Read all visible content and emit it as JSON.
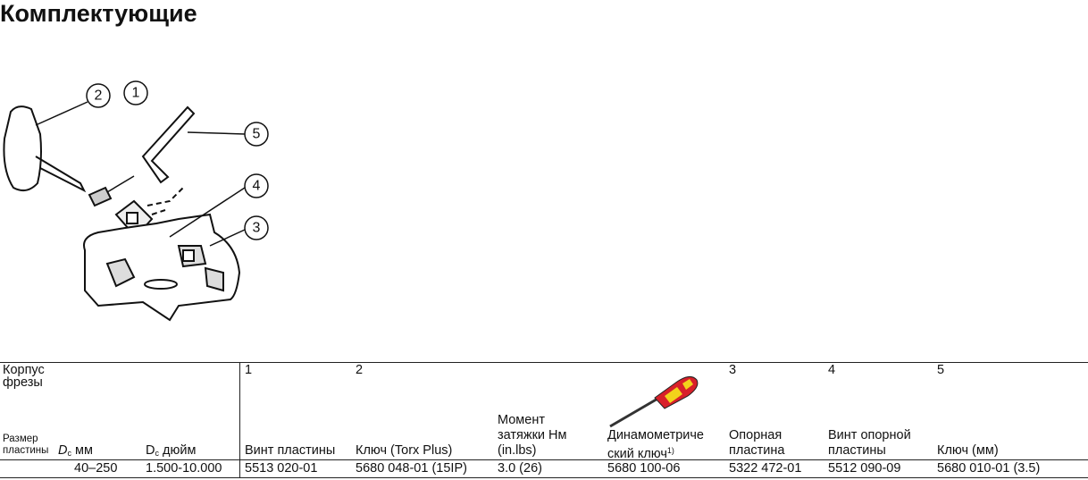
{
  "header": {
    "title": "Комплектующие"
  },
  "diagram": {
    "callouts": [
      "1",
      "2",
      "3",
      "4",
      "5"
    ]
  },
  "table": {
    "group_header": [
      "Корпус",
      "фрезы"
    ],
    "size_label": [
      "Размер",
      "пластины"
    ],
    "dc_mm": {
      "symbol": "D",
      "subscript": "c",
      "unit": "мм"
    },
    "dc_inch": {
      "symbol": "D",
      "subscript": "c",
      "unit": "дюйм"
    },
    "item_numbers": [
      "1",
      "2",
      "3",
      "4",
      "5"
    ],
    "columns": {
      "insert_screw": [
        "Винт пластины"
      ],
      "key_torx": [
        "Ключ (Torx Plus)"
      ],
      "torque": [
        "Момент",
        "затяжки Нм",
        "(in.lbs)"
      ],
      "torque_key": [
        "Динамометриче",
        "ский ключ"
      ],
      "torque_key_note": "1)",
      "shim": [
        "Опорная",
        "пластина"
      ],
      "shim_screw": [
        "Винт опорной",
        "пластины"
      ],
      "key_mm": [
        "Ключ (мм)"
      ]
    },
    "rows": [
      [
        "40–250",
        "1.500-10.000",
        "5513 020-01",
        "5680 048-01 (15IP)",
        "3.0 (26)",
        "5680 100-06",
        "5322 472-01",
        "5512 090-09",
        "5680 010-01 (3.5)"
      ]
    ]
  }
}
